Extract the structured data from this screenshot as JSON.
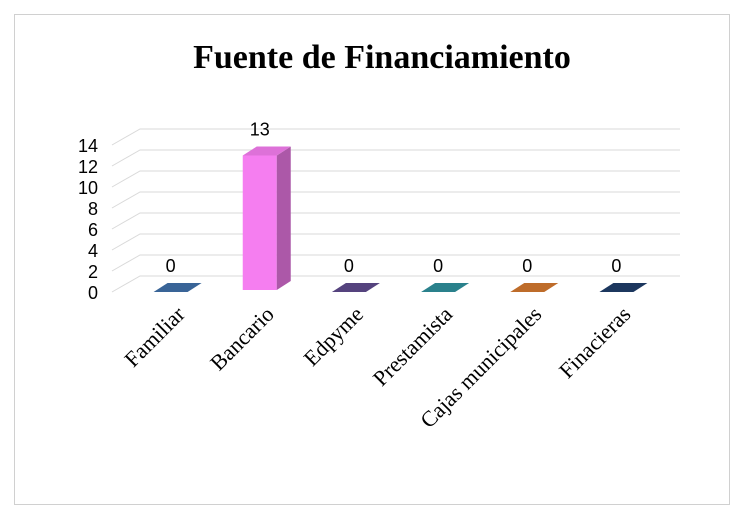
{
  "chart_data": {
    "type": "bar3d",
    "title": "Fuente de Financiamiento",
    "categories": [
      "Familiar",
      "Bancario",
      "Edpyme",
      "Prestamista",
      "Cajas municipales",
      "Finacieras"
    ],
    "values": [
      0,
      13,
      0,
      0,
      0,
      0
    ],
    "colors": [
      "#3f6fa8",
      "#f57ef0",
      "#5e4a8c",
      "#2f8f9c",
      "#d3782f",
      "#1f3d68"
    ],
    "ylim": [
      0,
      14
    ],
    "yticks": [
      0,
      2,
      4,
      6,
      8,
      10,
      12,
      14
    ],
    "grid": true
  }
}
